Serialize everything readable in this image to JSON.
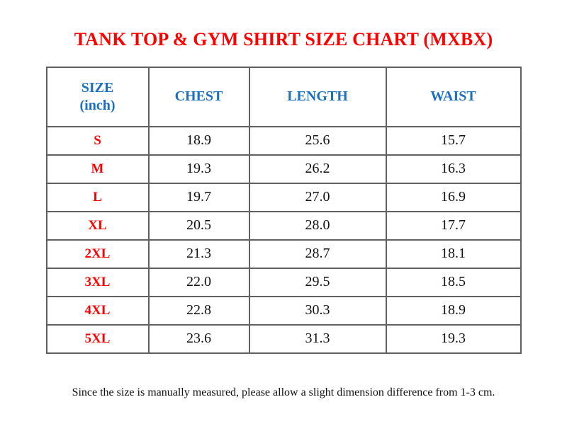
{
  "colors": {
    "red": "#ff0000",
    "blue": "#1b6fc1",
    "border": "#606060",
    "text": "#111111"
  },
  "title": "TANK TOP & GYM SHIRT SIZE CHART (MXBX)",
  "table": {
    "headers": {
      "size_line1": "SIZE",
      "size_line2": "(inch)",
      "chest": "CHEST",
      "length": "LENGTH",
      "waist": "WAIST"
    },
    "rows": [
      {
        "size": "S",
        "chest": "18.9",
        "length": "25.6",
        "waist": "15.7"
      },
      {
        "size": "M",
        "chest": "19.3",
        "length": "26.2",
        "waist": "16.3"
      },
      {
        "size": "L",
        "chest": "19.7",
        "length": "27.0",
        "waist": "16.9"
      },
      {
        "size": "XL",
        "chest": "20.5",
        "length": "28.0",
        "waist": "17.7"
      },
      {
        "size": "2XL",
        "chest": "21.3",
        "length": "28.7",
        "waist": "18.1"
      },
      {
        "size": "3XL",
        "chest": "22.0",
        "length": "29.5",
        "waist": "18.5"
      },
      {
        "size": "4XL",
        "chest": "22.8",
        "length": "30.3",
        "waist": "18.9"
      },
      {
        "size": "5XL",
        "chest": "23.6",
        "length": "31.3",
        "waist": "19.3"
      }
    ]
  },
  "footnote": "Since the size is manually measured, please allow a slight dimension difference from 1-3 cm.",
  "chart_data": {
    "type": "table",
    "title": "TANK TOP & GYM SHIRT SIZE CHART (MXBX)",
    "columns": [
      "SIZE (inch)",
      "CHEST",
      "LENGTH",
      "WAIST"
    ],
    "rows": [
      [
        "S",
        18.9,
        25.6,
        15.7
      ],
      [
        "M",
        19.3,
        26.2,
        16.3
      ],
      [
        "L",
        19.7,
        27.0,
        16.9
      ],
      [
        "XL",
        20.5,
        28.0,
        17.7
      ],
      [
        "2XL",
        21.3,
        28.7,
        18.1
      ],
      [
        "3XL",
        22.0,
        29.5,
        18.5
      ],
      [
        "4XL",
        22.8,
        30.3,
        18.9
      ],
      [
        "5XL",
        23.6,
        31.3,
        19.3
      ]
    ],
    "note": "Since the size is manually measured, please allow a slight dimension difference from 1-3 cm."
  }
}
